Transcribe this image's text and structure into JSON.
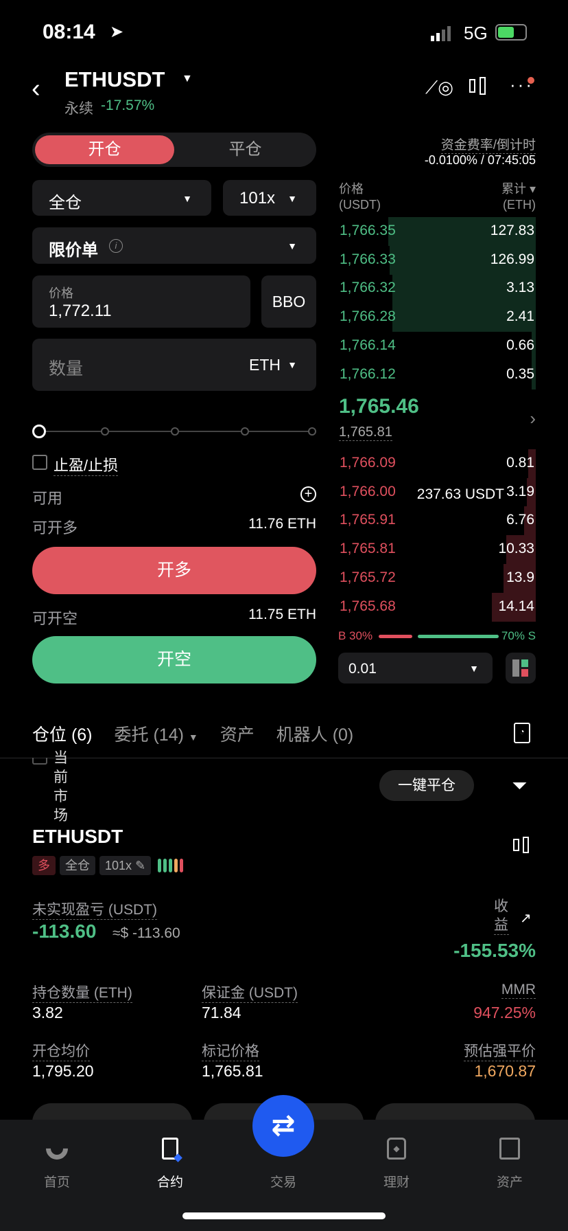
{
  "status": {
    "time": "08:14",
    "network": "5G"
  },
  "header": {
    "symbol": "ETHUSDT",
    "type": "永续",
    "change": "-17.57%"
  },
  "trade_tabs": {
    "open": "开仓",
    "close": "平仓"
  },
  "funding": {
    "label": "资金费率/倒计时",
    "value": "-0.0100% / 07:45:05"
  },
  "form": {
    "margin_mode": "全仓",
    "leverage": "101x",
    "order_type": "限价单",
    "price_label": "价格",
    "price_value": "1,772.11",
    "bbo": "BBO",
    "qty_placeholder": "数量",
    "qty_unit": "ETH",
    "tp_sl": "止盈/止损",
    "available_label": "可用",
    "available_value": "237.63 USDT",
    "max_long_label": "可开多",
    "max_long_value": "11.76 ETH",
    "long_button": "开多",
    "max_short_label": "可开空",
    "max_short_value": "11.75 ETH",
    "short_button": "开空",
    "slider_percent": 0
  },
  "orderbook": {
    "price_header": "价格",
    "price_unit": "(USDT)",
    "qty_header": "累计",
    "qty_unit": "(ETH)",
    "upper": [
      {
        "price": "1,766.35",
        "qty": "127.83",
        "depth": 1.0
      },
      {
        "price": "1,766.33",
        "qty": "126.99",
        "depth": 0.99
      },
      {
        "price": "1,766.32",
        "qty": "3.13",
        "depth": 0.97
      },
      {
        "price": "1,766.28",
        "qty": "2.41",
        "depth": 0.97
      },
      {
        "price": "1,766.14",
        "qty": "0.66",
        "depth": 0.03
      },
      {
        "price": "1,766.12",
        "qty": "0.35",
        "depth": 0.03
      }
    ],
    "last_price": "1,765.46",
    "mark_price": "1,765.81",
    "lower": [
      {
        "price": "1,766.09",
        "qty": "0.81",
        "depth": 0.05
      },
      {
        "price": "1,766.00",
        "qty": "3.19",
        "depth": 0.06
      },
      {
        "price": "1,765.91",
        "qty": "6.76",
        "depth": 0.08
      },
      {
        "price": "1,765.81",
        "qty": "10.33",
        "depth": 0.2
      },
      {
        "price": "1,765.72",
        "qty": "13.9",
        "depth": 0.22
      },
      {
        "price": "1,765.68",
        "qty": "14.14",
        "depth": 0.3
      }
    ],
    "buy_ratio": "B 30%",
    "sell_ratio": "70% S",
    "buy_percent": 30,
    "precision": "0.01"
  },
  "positions_tabs": [
    {
      "label": "仓位 (6)"
    },
    {
      "label": "委托 (14)"
    },
    {
      "label": "资产"
    },
    {
      "label": "机器人 (0)"
    }
  ],
  "current_market": "当前市场",
  "close_all": "一键平仓",
  "position": {
    "symbol": "ETHUSDT",
    "side": "多",
    "mode": "全仓",
    "leverage": "101x",
    "pnl_label": "未实现盈亏 (USDT)",
    "pnl": "-113.60",
    "pnl_usd": "≈$ -113.60",
    "roe_label": "收益",
    "roe": "-155.53%",
    "size_label": "持仓数量 (ETH)",
    "size": "3.82",
    "margin_label": "保证金 (USDT)",
    "margin": "71.84",
    "mmr_label": "MMR",
    "mmr": "947.25%",
    "entry_label": "开仓均价",
    "entry": "1,795.20",
    "mark_label": "标记价格",
    "mark": "1,765.81",
    "liq_label": "预估强平价",
    "liq": "1,670.87"
  },
  "nav": [
    {
      "label": "首页"
    },
    {
      "label": "合约"
    },
    {
      "label": "交易"
    },
    {
      "label": "理财"
    },
    {
      "label": "资产"
    }
  ],
  "colors": {
    "green": "#4fbf86",
    "red": "#e0505e",
    "blue": "#1f5af0",
    "orange": "#f0a860"
  }
}
